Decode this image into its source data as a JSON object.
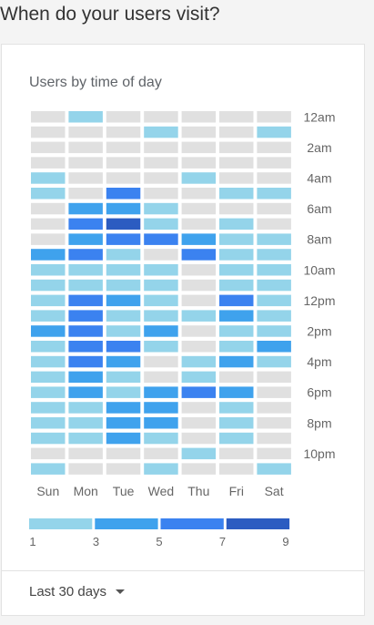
{
  "page": {
    "title": "When do your users visit?"
  },
  "card": {
    "title": "Users by time of day"
  },
  "footer": {
    "range_label": "Last 30 days",
    "range_icon": "caret-down-icon"
  },
  "chart_data": {
    "type": "heatmap",
    "title": "Users by time of day",
    "days": [
      "Sun",
      "Mon",
      "Tue",
      "Wed",
      "Thu",
      "Fri",
      "Sat"
    ],
    "hour_ticks": [
      "12am",
      "2am",
      "4am",
      "6am",
      "8am",
      "10am",
      "12pm",
      "2pm",
      "4pm",
      "6pm",
      "8pm",
      "10pm"
    ],
    "legend": {
      "ticks": [
        "1",
        "3",
        "5",
        "7",
        "9"
      ],
      "range": [
        1,
        9
      ]
    },
    "colors": {
      "empty": "#e0e0e0",
      "bins": [
        "#94d4ea",
        "#3fa2ed",
        "#3b82f0",
        "#2c5cc1"
      ]
    },
    "values": [
      [
        0,
        1,
        0,
        0,
        0,
        0,
        0
      ],
      [
        0,
        0,
        0,
        1,
        0,
        0,
        1
      ],
      [
        0,
        0,
        0,
        0,
        0,
        0,
        0
      ],
      [
        0,
        0,
        0,
        0,
        0,
        0,
        0
      ],
      [
        1,
        0,
        0,
        0,
        1,
        0,
        0
      ],
      [
        1,
        0,
        5,
        0,
        0,
        1,
        1
      ],
      [
        0,
        3,
        3,
        1,
        0,
        0,
        0
      ],
      [
        0,
        5,
        7,
        1,
        0,
        1,
        0
      ],
      [
        0,
        3,
        5,
        5,
        3,
        1,
        1
      ],
      [
        3,
        5,
        1,
        0,
        5,
        1,
        1
      ],
      [
        1,
        1,
        1,
        1,
        0,
        1,
        1
      ],
      [
        1,
        1,
        1,
        1,
        0,
        1,
        1
      ],
      [
        1,
        5,
        3,
        1,
        0,
        5,
        1
      ],
      [
        1,
        5,
        1,
        1,
        1,
        3,
        1
      ],
      [
        3,
        5,
        1,
        3,
        0,
        1,
        1
      ],
      [
        1,
        5,
        5,
        1,
        0,
        1,
        3
      ],
      [
        1,
        5,
        3,
        0,
        1,
        3,
        1
      ],
      [
        1,
        3,
        1,
        0,
        1,
        0,
        0
      ],
      [
        1,
        3,
        1,
        3,
        5,
        3,
        0
      ],
      [
        1,
        1,
        3,
        3,
        0,
        1,
        0
      ],
      [
        1,
        1,
        3,
        3,
        0,
        1,
        0
      ],
      [
        1,
        1,
        3,
        1,
        0,
        1,
        0
      ],
      [
        0,
        0,
        0,
        0,
        1,
        0,
        0
      ],
      [
        1,
        0,
        0,
        1,
        0,
        0,
        1
      ]
    ]
  }
}
